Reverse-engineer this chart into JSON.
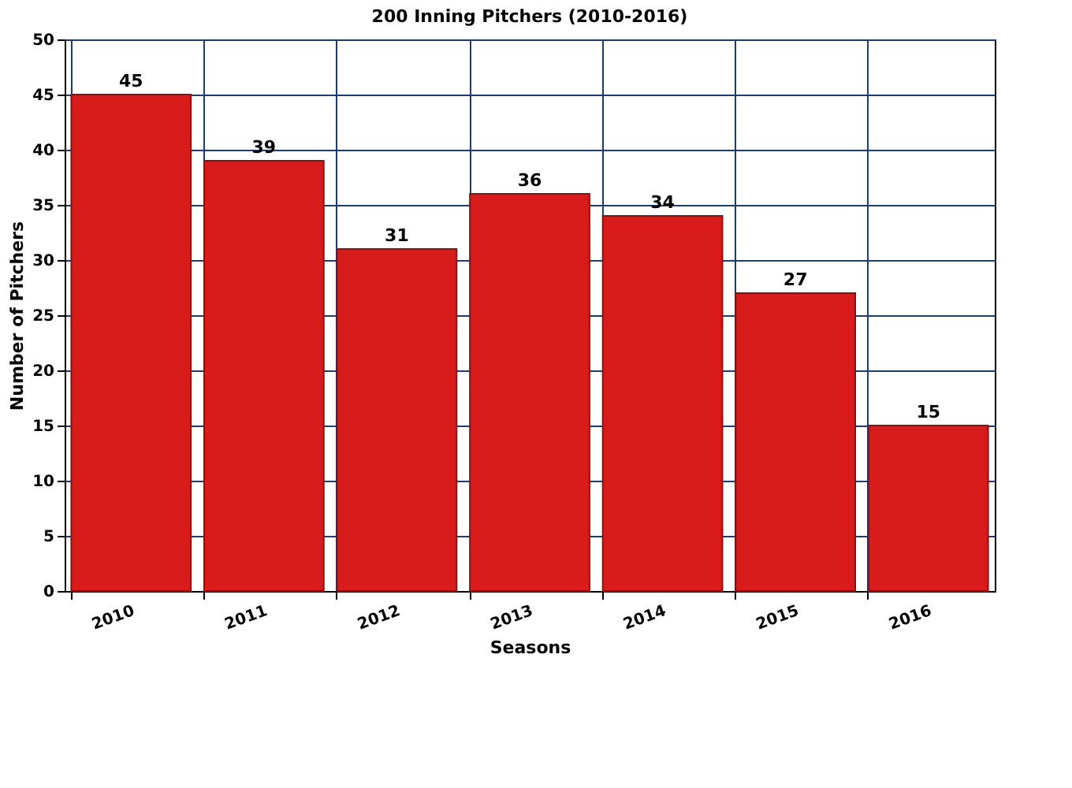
{
  "chart_data": {
    "type": "bar",
    "title": "200 Inning Pitchers (2010-2016)",
    "xlabel": "Seasons",
    "ylabel": "Number of Pitchers",
    "categories": [
      "2010",
      "2011",
      "2012",
      "2013",
      "2014",
      "2015",
      "2016"
    ],
    "values": [
      45,
      39,
      31,
      36,
      34,
      27,
      15
    ],
    "color": "#d81c1c",
    "ylim": [
      0,
      50
    ],
    "yticks": [
      0,
      5,
      10,
      15,
      20,
      25,
      30,
      35,
      40,
      45,
      50
    ],
    "grid": true,
    "data_labels": true
  }
}
